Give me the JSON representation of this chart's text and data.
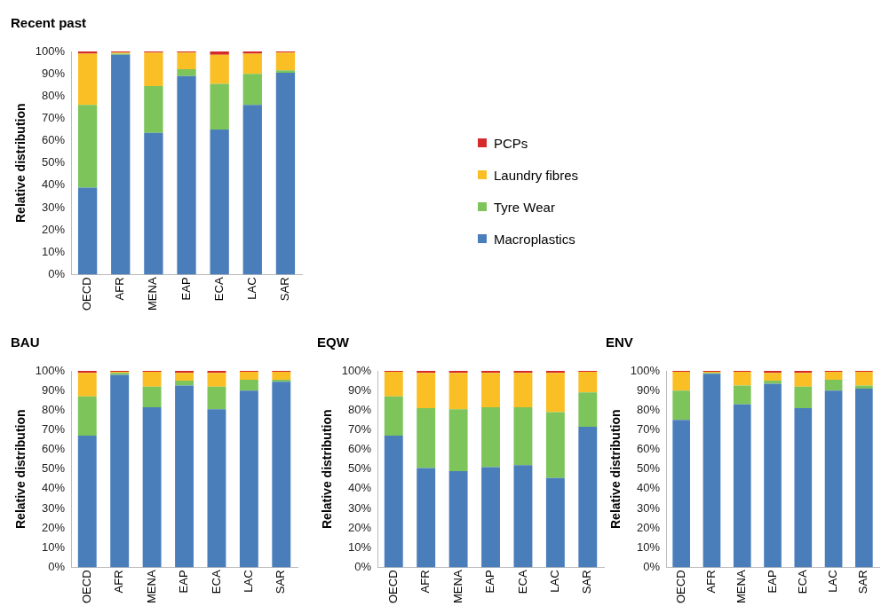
{
  "chart_data": [
    {
      "type": "bar",
      "title": "Recent past",
      "ylabel": "Relative distribution",
      "categories": [
        "OECD",
        "AFR",
        "MENA",
        "EAP",
        "ECA",
        "LAC",
        "SAR"
      ],
      "stacked": true,
      "grid": false,
      "legend": "right",
      "ylim": [
        0,
        100
      ],
      "yticks": [
        {
          "value": 0,
          "label": "0%"
        },
        {
          "value": 10,
          "label": "10%"
        },
        {
          "value": 20,
          "label": "20%"
        },
        {
          "value": 30,
          "label": "30%"
        },
        {
          "value": 40,
          "label": "40%"
        },
        {
          "value": 50,
          "label": "50%"
        },
        {
          "value": 60,
          "label": "60%"
        },
        {
          "value": 70,
          "label": "70%"
        },
        {
          "value": 80,
          "label": "80%"
        },
        {
          "value": 90,
          "label": "90%"
        },
        {
          "value": 100,
          "label": "100%"
        }
      ],
      "series": [
        {
          "name": "Macroplastics",
          "color": "#4a7ebb",
          "values": [
            39,
            98.5,
            63.5,
            89,
            65,
            76,
            90.5
          ]
        },
        {
          "name": "Tyre Wear",
          "color": "#7dc45a",
          "values": [
            37,
            0.5,
            21,
            3,
            20.5,
            14,
            1
          ]
        },
        {
          "name": "Laundry fibres",
          "color": "#fbbf26",
          "values": [
            23,
            0.5,
            15,
            7.5,
            13,
            9,
            8
          ]
        },
        {
          "name": "PCPs",
          "color": "#d42a2a",
          "values": [
            1,
            0.5,
            0.5,
            0.5,
            1.5,
            1,
            0.5
          ]
        }
      ]
    },
    {
      "type": "bar",
      "title": "BAU",
      "ylabel": "Relative distribution",
      "categories": [
        "OECD",
        "AFR",
        "MENA",
        "EAP",
        "ECA",
        "LAC",
        "SAR"
      ],
      "stacked": true,
      "grid": false,
      "ylim": [
        0,
        100
      ],
      "yticks": [
        {
          "value": 0,
          "label": "0%"
        },
        {
          "value": 10,
          "label": "10%"
        },
        {
          "value": 20,
          "label": "20%"
        },
        {
          "value": 30,
          "label": "30%"
        },
        {
          "value": 40,
          "label": "40%"
        },
        {
          "value": 50,
          "label": "50%"
        },
        {
          "value": 60,
          "label": "60%"
        },
        {
          "value": 70,
          "label": "70%"
        },
        {
          "value": 80,
          "label": "80%"
        },
        {
          "value": 90,
          "label": "90%"
        },
        {
          "value": 100,
          "label": "100%"
        }
      ],
      "series": [
        {
          "color": "#4a7ebb",
          "values": [
            67,
            98,
            81.5,
            92.5,
            80.5,
            90,
            94.5
          ]
        },
        {
          "color": "#7dc45a",
          "values": [
            20,
            1,
            10.5,
            2.5,
            11.5,
            5.5,
            1
          ]
        },
        {
          "color": "#fbbf26",
          "values": [
            12,
            0.5,
            7.5,
            4,
            7,
            4,
            4
          ]
        },
        {
          "color": "#d42a2a",
          "values": [
            1,
            0.5,
            0.5,
            1,
            1,
            0.5,
            0.5
          ]
        }
      ]
    },
    {
      "type": "bar",
      "title": "EQW",
      "ylabel": "Relative distribution",
      "categories": [
        "OECD",
        "AFR",
        "MENA",
        "EAP",
        "ECA",
        "LAC",
        "SAR"
      ],
      "stacked": true,
      "grid": false,
      "ylim": [
        0,
        100
      ],
      "yticks": [
        {
          "value": 0,
          "label": "0%"
        },
        {
          "value": 10,
          "label": "10%"
        },
        {
          "value": 20,
          "label": "20%"
        },
        {
          "value": 30,
          "label": "30%"
        },
        {
          "value": 40,
          "label": "40%"
        },
        {
          "value": 50,
          "label": "50%"
        },
        {
          "value": 60,
          "label": "60%"
        },
        {
          "value": 70,
          "label": "70%"
        },
        {
          "value": 80,
          "label": "80%"
        },
        {
          "value": 90,
          "label": "90%"
        },
        {
          "value": 100,
          "label": "100%"
        }
      ],
      "series": [
        {
          "color": "#4a7ebb",
          "values": [
            67,
            50.5,
            49,
            51,
            52,
            45.5,
            71.5
          ]
        },
        {
          "color": "#7dc45a",
          "values": [
            20,
            30.5,
            31.5,
            30.5,
            29.5,
            33.5,
            17.5
          ]
        },
        {
          "color": "#fbbf26",
          "values": [
            12.5,
            18,
            18.5,
            17.5,
            17.5,
            20,
            10.5
          ]
        },
        {
          "color": "#d42a2a",
          "values": [
            0.5,
            1,
            1,
            1,
            1,
            1,
            0.5
          ]
        }
      ]
    },
    {
      "type": "bar",
      "title": "ENV",
      "ylabel": "Relative distribution",
      "categories": [
        "OECD",
        "AFR",
        "MENA",
        "EAP",
        "ECA",
        "LAC",
        "SAR"
      ],
      "stacked": true,
      "grid": false,
      "ylim": [
        0,
        100
      ],
      "yticks": [
        {
          "value": 0,
          "label": "0%"
        },
        {
          "value": 10,
          "label": "10%"
        },
        {
          "value": 20,
          "label": "20%"
        },
        {
          "value": 30,
          "label": "30%"
        },
        {
          "value": 40,
          "label": "40%"
        },
        {
          "value": 50,
          "label": "50%"
        },
        {
          "value": 60,
          "label": "60%"
        },
        {
          "value": 70,
          "label": "70%"
        },
        {
          "value": 80,
          "label": "80%"
        },
        {
          "value": 90,
          "label": "90%"
        },
        {
          "value": 100,
          "label": "100%"
        }
      ],
      "series": [
        {
          "color": "#4a7ebb",
          "values": [
            75,
            98.5,
            83,
            93.5,
            81,
            90,
            91
          ]
        },
        {
          "color": "#7dc45a",
          "values": [
            15,
            0.5,
            9.5,
            1.5,
            11,
            5.5,
            1.5
          ]
        },
        {
          "color": "#fbbf26",
          "values": [
            9.5,
            0.5,
            7,
            4,
            7,
            4,
            7
          ]
        },
        {
          "color": "#d42a2a",
          "values": [
            0.5,
            0.5,
            0.5,
            1,
            1,
            0.5,
            0.5
          ]
        }
      ]
    }
  ]
}
